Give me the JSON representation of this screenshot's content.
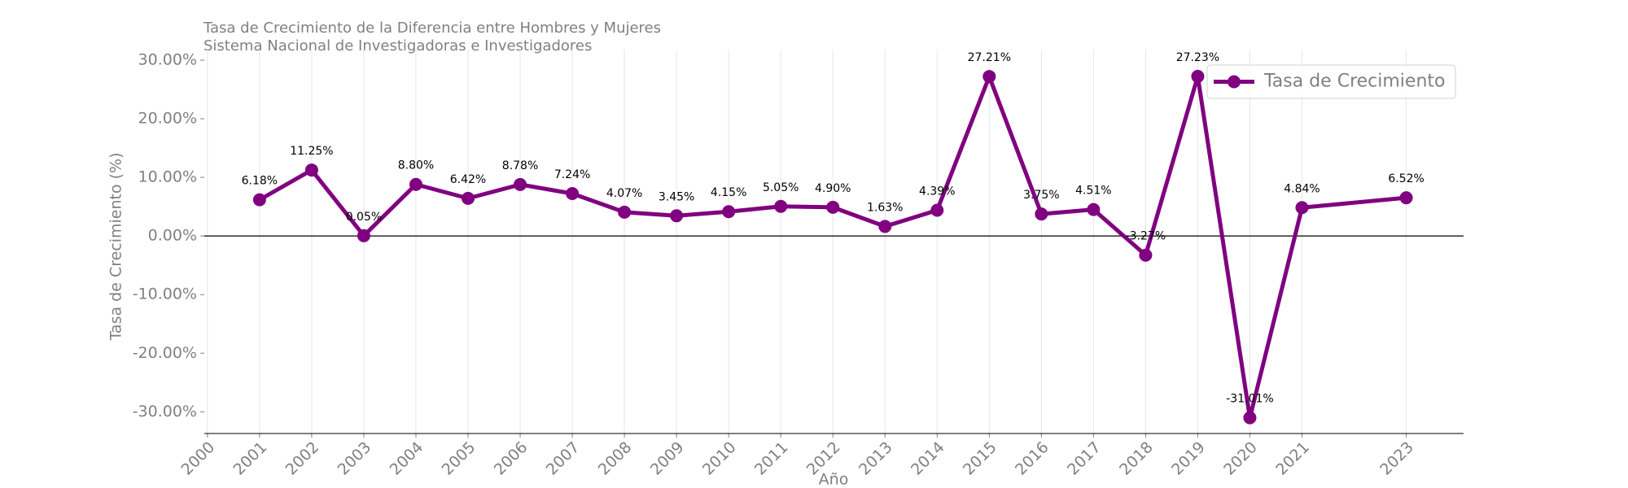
{
  "chart_data": {
    "type": "line",
    "title": "Tasa de Crecimiento de la Diferencia entre Hombres y Mujeres",
    "subtitle": "Sistema Nacional de Investigadoras e Investigadores",
    "x_label": "Año",
    "y_label": "Tasa de Crecimiento (%)",
    "x": [
      2001,
      2002,
      2003,
      2004,
      2005,
      2006,
      2007,
      2008,
      2009,
      2010,
      2011,
      2012,
      2013,
      2014,
      2015,
      2016,
      2017,
      2018,
      2019,
      2020,
      2021,
      2023
    ],
    "series": [
      {
        "name": "Tasa de Crecimiento",
        "color": "#800080",
        "values": [
          6.18,
          11.25,
          0.05,
          8.8,
          6.42,
          8.78,
          7.24,
          4.07,
          3.45,
          4.15,
          5.05,
          4.9,
          1.63,
          4.39,
          27.21,
          3.75,
          4.51,
          -3.27,
          27.23,
          -31.01,
          4.84,
          6.52
        ],
        "value_labels": [
          "6.18%",
          "11.25%",
          "0.05%",
          "8.80%",
          "6.42%",
          "8.78%",
          "7.24%",
          "4.07%",
          "3.45%",
          "4.15%",
          "5.05%",
          "4.90%",
          "1.63%",
          "4.39%",
          "27.21%",
          "3.75%",
          "4.51%",
          "-3.27%",
          "27.23%",
          "-31.01%",
          "4.84%",
          "6.52%"
        ]
      }
    ],
    "xlim": [
      1999.94,
      2024.1
    ],
    "ylim": [
      -33.7,
      31.8
    ],
    "xticks": [
      2000,
      2001,
      2002,
      2003,
      2004,
      2005,
      2006,
      2007,
      2008,
      2009,
      2010,
      2011,
      2012,
      2013,
      2014,
      2015,
      2016,
      2017,
      2018,
      2019,
      2020,
      2021,
      2023
    ],
    "yticks": [
      {
        "value": -30,
        "label": "-30.00%"
      },
      {
        "value": -20,
        "label": "-20.00%"
      },
      {
        "value": -10,
        "label": "-10.00%"
      },
      {
        "value": 0,
        "label": "0.00%"
      },
      {
        "value": 10,
        "label": "10.00%"
      },
      {
        "value": 20,
        "label": "20.00%"
      },
      {
        "value": 30,
        "label": "30.00%"
      }
    ],
    "axhline": 0,
    "grid": "x",
    "legend": "upper right"
  }
}
